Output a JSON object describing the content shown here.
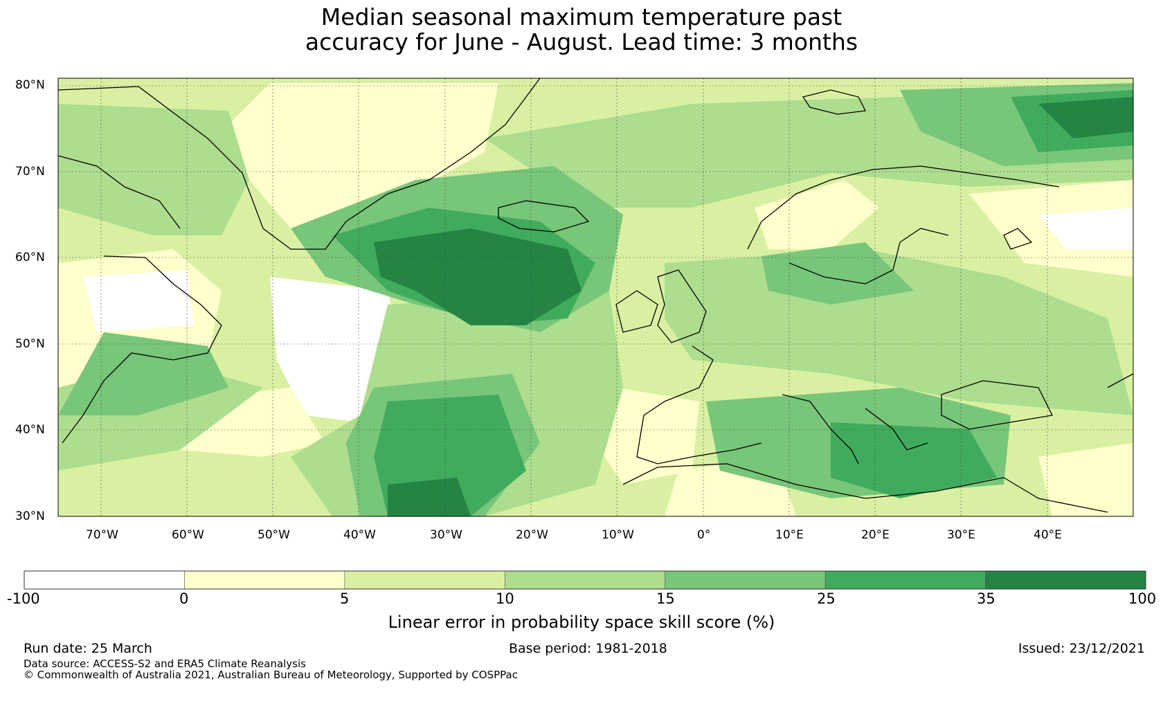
{
  "title": {
    "line1": "Median seasonal maximum temperature past",
    "line2": "accuracy for June - August. Lead time: 3 months"
  },
  "map": {
    "lat_ticks": [
      "80°N",
      "70°N",
      "60°N",
      "50°N",
      "40°N",
      "30°N"
    ],
    "lon_ticks": [
      "70°W",
      "60°W",
      "50°W",
      "40°W",
      "30°W",
      "20°W",
      "10°W",
      "0°",
      "10°E",
      "20°E",
      "30°E",
      "40°E"
    ],
    "extent": {
      "lon_min": -75,
      "lon_max": 50,
      "lat_min": 30,
      "lat_max": 81
    }
  },
  "colorbar": {
    "boundaries": [
      "-100",
      "0",
      "5",
      "10",
      "15",
      "25",
      "35",
      "100"
    ],
    "colors": [
      "#ffffff",
      "#ffffcc",
      "#d9f0a3",
      "#addd8e",
      "#78c679",
      "#41ab5d",
      "#238443"
    ],
    "label": "Linear error in probability space skill score (%)"
  },
  "footer": {
    "run_date": "Run date: 25 March",
    "base_period": "Base period: 1981-2018",
    "issued": "Issued: 23/12/2021",
    "data_source": "Data source: ACCESS-S2 and ERA5 Climate Reanalysis",
    "copyright": "© Commonwealth of Australia 2021, Australian Bureau of Meteorology, Supported by COSPPac"
  }
}
